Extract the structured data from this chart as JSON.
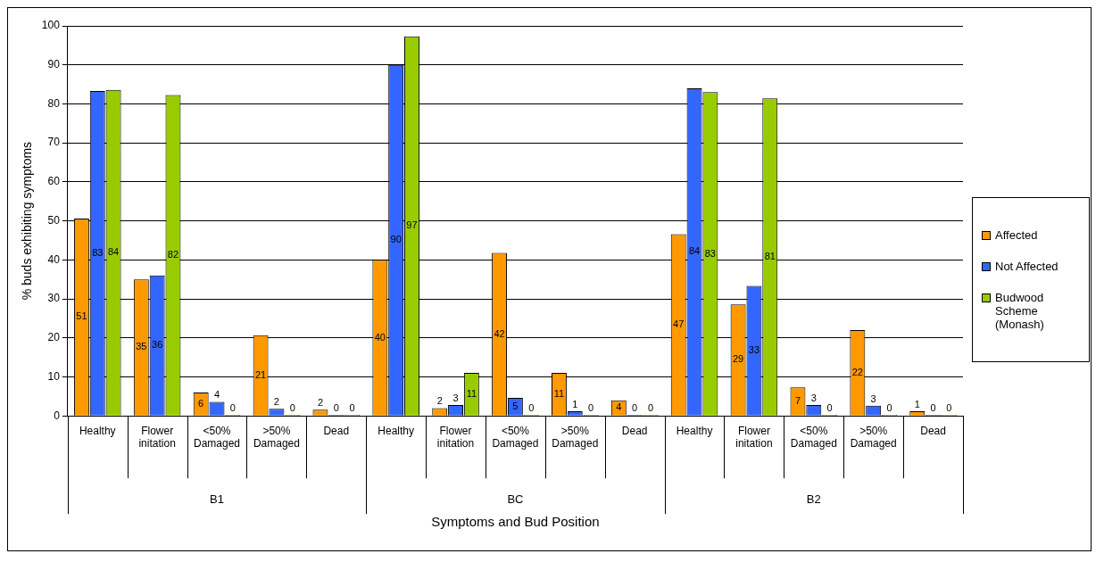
{
  "chart_data": {
    "type": "bar",
    "xlabel": "Symptoms and Bud Position",
    "ylabel": "% buds exhibiting symptoms",
    "categories": [
      "Healthy",
      "Flower initation",
      "<50% Damaged",
      ">50% Damaged",
      "Dead",
      "Healthy",
      "Flower initation",
      "<50% Damaged",
      ">50% Damaged",
      "Dead",
      "Healthy",
      "Flower initation",
      "<50% Damaged",
      ">50% Damaged",
      "Dead"
    ],
    "series": [
      {
        "name": "Affected",
        "color": "#ff9900",
        "values": [
          50.6,
          35,
          6,
          20.7,
          1.6,
          40,
          2,
          41.8,
          11,
          4,
          46.6,
          28.6,
          7.3,
          22,
          1.2
        ],
        "value_labels": [
          "51",
          "35",
          "6",
          "21",
          "2",
          "40",
          "2",
          "42",
          "11",
          "4",
          "47",
          "29",
          "7",
          "22",
          "1"
        ]
      },
      {
        "name": "Not Affected",
        "color": "#3366ff",
        "values": [
          83.3,
          36,
          3.6,
          1.8,
          0.3,
          90,
          2.8,
          4.6,
          1.2,
          0.3,
          84,
          33.3,
          2.8,
          2.6,
          0.3
        ],
        "value_labels": [
          "83",
          "36",
          "4",
          "2",
          "0",
          "90",
          "3",
          "5",
          "1",
          "0",
          "84",
          "33",
          "3",
          "3",
          "0"
        ]
      },
      {
        "name": "Budwood Scheme (Monash)",
        "color": "#99cc00",
        "values": [
          83.6,
          82.3,
          0.3,
          0.3,
          0.3,
          97.3,
          11,
          0.3,
          0.3,
          0.3,
          83,
          81.4,
          0.3,
          0.3,
          0.3
        ],
        "value_labels": [
          "84",
          "82",
          "0",
          "0",
          "0",
          "97",
          "11",
          "0",
          "0",
          "0",
          "83",
          "81",
          "0",
          "0",
          "0"
        ]
      }
    ],
    "ylim": [
      0,
      100
    ],
    "yticks": [
      0,
      10,
      20,
      30,
      40,
      50,
      60,
      70,
      80,
      90,
      100
    ],
    "grid": "y",
    "legend": "right",
    "annotations": [
      "B1",
      "BC",
      "B2"
    ]
  }
}
